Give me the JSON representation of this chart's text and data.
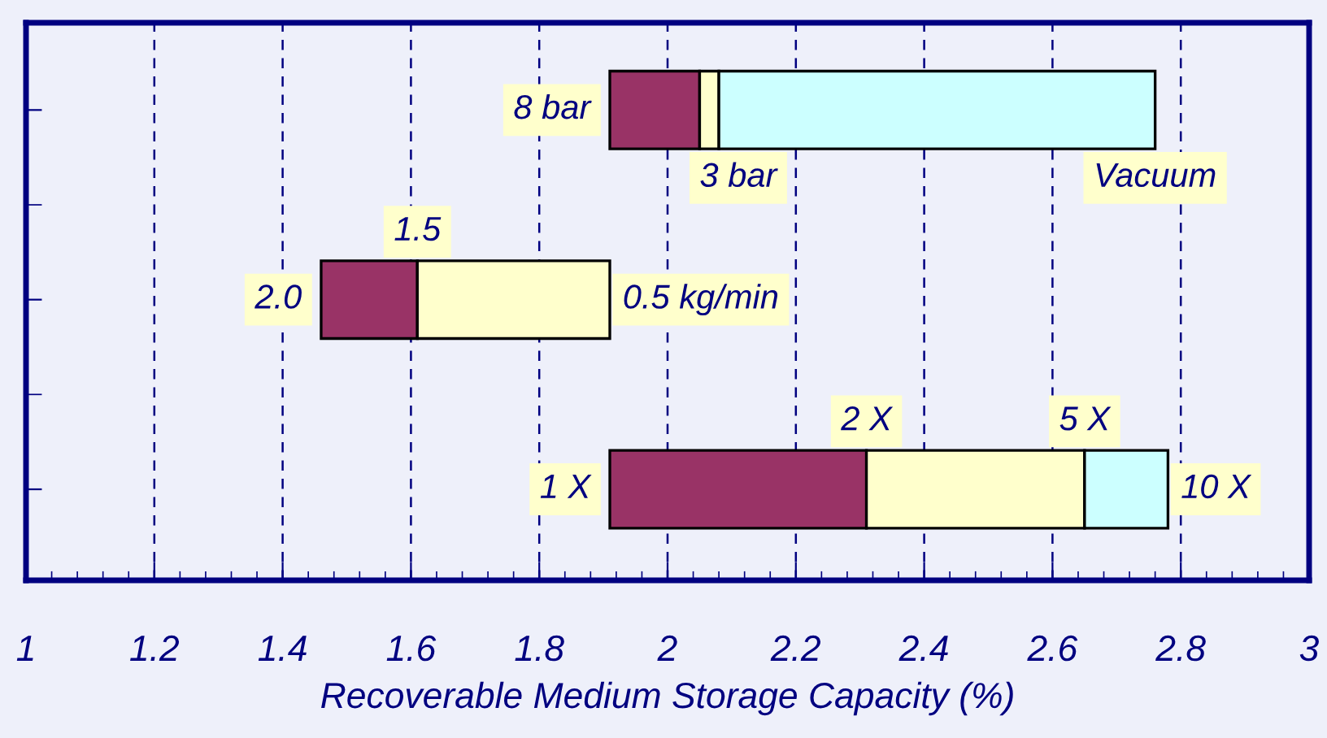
{
  "chart_data": {
    "type": "bar",
    "orientation": "horizontal",
    "xlabel": "Recoverable Medium Storage Capacity (%)",
    "categories": [
      null,
      null,
      null
    ],
    "series": [
      {
        "color": "#993366",
        "base": [
          1.91,
          1.46,
          1.91
        ],
        "values": [
          0.14,
          0.15,
          0.4
        ]
      },
      {
        "color": "#ffffcc",
        "base": [
          2.05,
          1.61,
          2.31
        ],
        "values": [
          0.03,
          0.3,
          0.34
        ]
      },
      {
        "color": "#ccffff",
        "base": [
          2.08,
          null,
          2.65
        ],
        "values": [
          0.68,
          null,
          0.13
        ]
      }
    ],
    "annotations": [
      "8 bar",
      "3 bar",
      "Vacuum",
      "1.5",
      "2.0",
      "0.5 kg/min",
      "2 X",
      "5 X",
      "1 X",
      "10 X"
    ],
    "xlim": [
      1,
      3
    ],
    "xticks": [
      1,
      1.2,
      1.4,
      1.6,
      1.8,
      2,
      2.2,
      2.4,
      2.6,
      2.8,
      3
    ],
    "grid": "x"
  }
}
